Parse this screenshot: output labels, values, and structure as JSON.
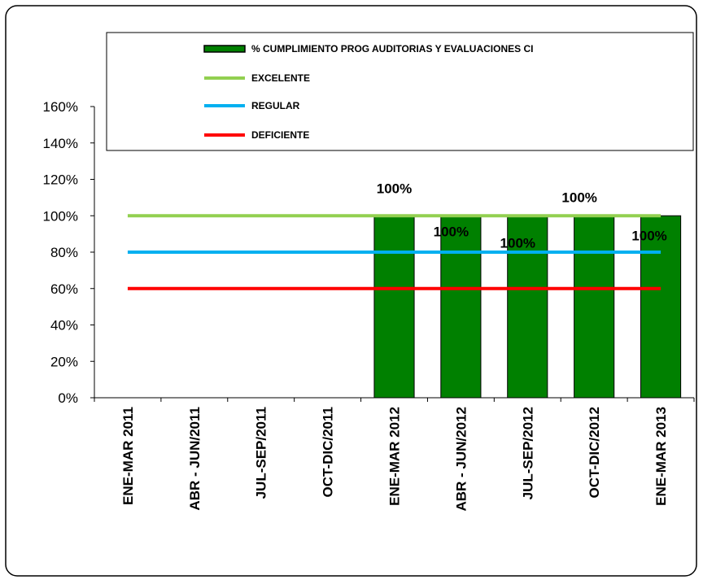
{
  "chart_data": {
    "type": "bar",
    "categories": [
      "ENE-MAR 2011",
      "ABR - JUN/2011",
      "JUL-SEP/2011",
      "OCT-DIC/2011",
      "ENE-MAR 2012",
      "ABR - JUN/2012",
      "JUL-SEP/2012",
      "OCT-DIC/2012",
      "ENE-MAR 2013"
    ],
    "series": [
      {
        "name": "% CUMPLIMIENTO PROG AUDITORIAS Y EVALUACIONES CI",
        "kind": "bar",
        "color": "#008000",
        "values": [
          null,
          null,
          null,
          null,
          100,
          100,
          100,
          100,
          100
        ],
        "data_labels": [
          "",
          "",
          "",
          "",
          "100%",
          "100%",
          "100%",
          "100%",
          "100%"
        ]
      },
      {
        "name": "EXCELENTE",
        "kind": "line",
        "color": "#92D050",
        "values": [
          100,
          100,
          100,
          100,
          100,
          100,
          100,
          100,
          100
        ]
      },
      {
        "name": "REGULAR",
        "kind": "line",
        "color": "#00B0F0",
        "values": [
          80,
          80,
          80,
          80,
          80,
          80,
          80,
          80,
          80
        ]
      },
      {
        "name": "DEFICIENTE",
        "kind": "line",
        "color": "#FF0000",
        "values": [
          60,
          60,
          60,
          60,
          60,
          60,
          60,
          60,
          60
        ]
      }
    ],
    "y_ticks": [
      "0%",
      "20%",
      "40%",
      "60%",
      "80%",
      "100%",
      "120%",
      "140%",
      "160%"
    ],
    "ylim": [
      0,
      160
    ],
    "legend_position": "top",
    "grid": false
  }
}
